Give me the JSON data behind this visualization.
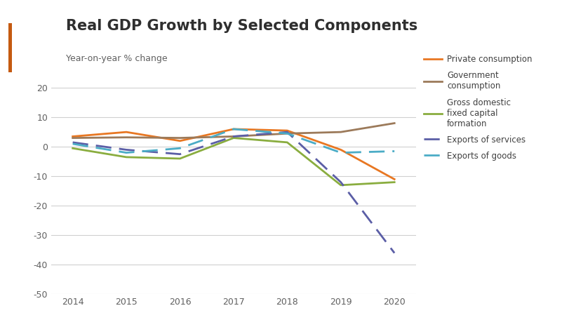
{
  "title": "Real GDP Growth by Selected Components",
  "subtitle": "Year-on-year % change",
  "years": [
    2014,
    2015,
    2016,
    2017,
    2018,
    2019,
    2020
  ],
  "private_consumption": [
    3.5,
    5.0,
    2.0,
    6.0,
    5.5,
    -1.0,
    -11.0
  ],
  "government_consumption": [
    3.0,
    3.2,
    3.0,
    3.5,
    4.5,
    5.0,
    8.0
  ],
  "gross_fixed_capital": [
    -0.5,
    -3.5,
    -4.0,
    3.0,
    1.5,
    -13.0,
    -12.0
  ],
  "exports_services": [
    1.5,
    -1.0,
    -2.5,
    3.5,
    5.0,
    -12.0,
    -36.0
  ],
  "exports_goods": [
    1.0,
    -2.0,
    -0.5,
    6.0,
    4.5,
    -2.0,
    -1.5
  ],
  "colors": {
    "private_consumption": "#E87722",
    "government_consumption": "#9C7A5A",
    "gross_fixed_capital": "#8AAD3F",
    "exports_services": "#5B5EA6",
    "exports_goods": "#4BACC6"
  },
  "ylim": [
    -50,
    25
  ],
  "yticks": [
    -50,
    -40,
    -30,
    -20,
    -10,
    0,
    10,
    20
  ],
  "title_color": "#2F2F2F",
  "subtitle_color": "#606060",
  "accent_bar_color": "#C55A11",
  "background_color": "#FFFFFF",
  "grid_color": "#D0D0D0"
}
